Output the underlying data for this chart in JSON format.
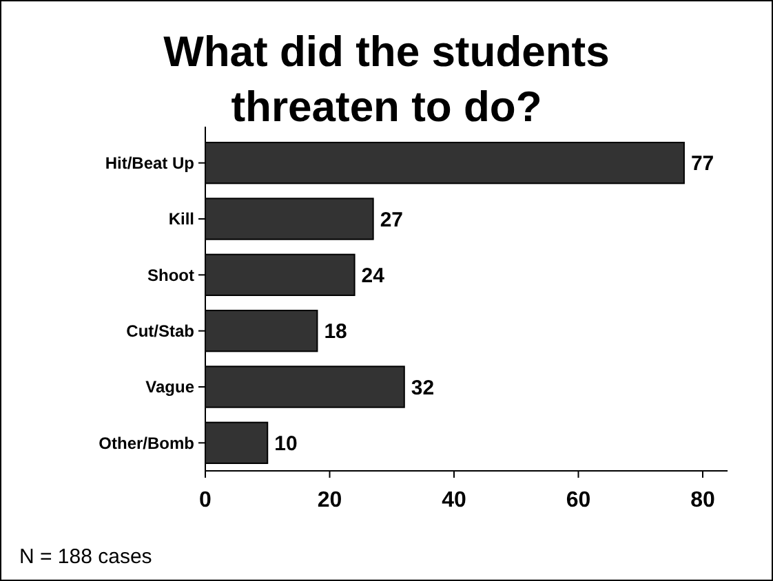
{
  "chart_data": {
    "type": "bar",
    "orientation": "horizontal",
    "title": "What did the students threaten to do?",
    "categories": [
      "Hit/Beat Up",
      "Kill",
      "Shoot",
      "Cut/Stab",
      "Vague",
      "Other/Bomb"
    ],
    "values": [
      77,
      27,
      24,
      18,
      32,
      10
    ],
    "color": "#333333",
    "xlim": [
      0,
      84
    ],
    "xticks": [
      0,
      20,
      40,
      60,
      80
    ],
    "data_labels": true,
    "grid": false,
    "annotations": [
      "N = 188 cases"
    ]
  }
}
